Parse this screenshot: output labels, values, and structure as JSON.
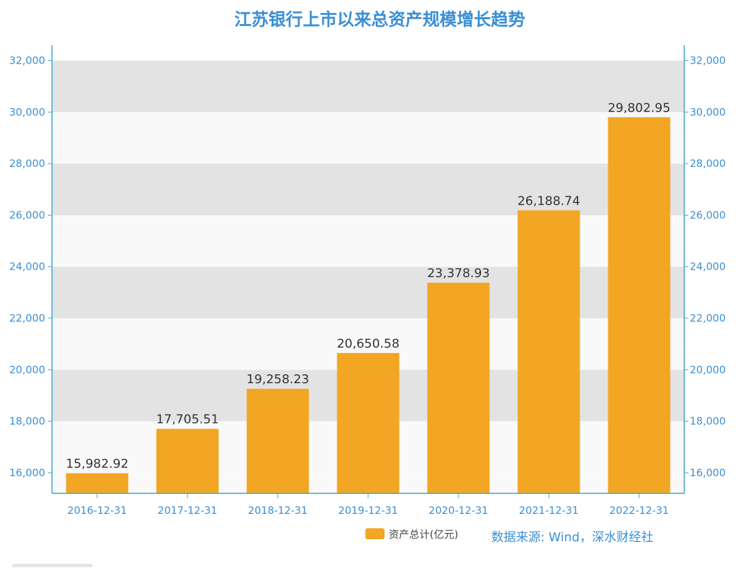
{
  "chart_data": {
    "type": "bar",
    "title": "江苏银行上市以来总资产规模增长趋势",
    "categories": [
      "2016-12-31",
      "2017-12-31",
      "2018-12-31",
      "2019-12-31",
      "2020-12-31",
      "2021-12-31",
      "2022-12-31"
    ],
    "series": [
      {
        "name": "资产总计(亿元)",
        "values": [
          15982.92,
          17705.51,
          19258.23,
          20650.58,
          23378.93,
          26188.74,
          29802.95
        ],
        "labels": [
          "15,982.92",
          "17,705.51",
          "19,258.23",
          "20,650.58",
          "23,378.93",
          "26,188.74",
          "29,802.95"
        ],
        "color": "#F2A623"
      }
    ],
    "yticks": [
      "16,000",
      "18,000",
      "20,000",
      "22,000",
      "24,000",
      "26,000",
      "28,000",
      "30,000",
      "32,000"
    ],
    "ylim": [
      15200,
      32600
    ],
    "grid": true,
    "legend_position": "bottom",
    "source": "数据来源: Wind，深水财经社"
  },
  "colors": {
    "title": "#3A8FD6",
    "axis": "#3AA6C9",
    "tick_text": "#3A8FD6",
    "band_dark": "#E3E3E3",
    "band_light": "#F9F9F9",
    "bar": "#F2A623",
    "label_text": "#333333",
    "source": "#3A8FD6"
  }
}
